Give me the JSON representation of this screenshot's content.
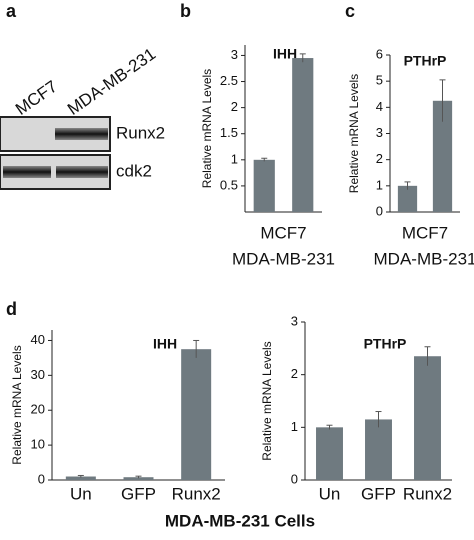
{
  "panels": [
    "a",
    "b",
    "c",
    "d"
  ],
  "blot": {
    "cell_lines": [
      "MCF7",
      "MDA-MB-231"
    ],
    "proteins": [
      "Runx2",
      "cdk2"
    ]
  },
  "shared_xlabel": "MDA-MB-231 Cells",
  "chart_data": [
    {
      "type": "bar",
      "title": "IHH",
      "ylabel": "Relative mRNA Levels",
      "categories": [
        "MCF7",
        "MDA-MB-231"
      ],
      "values": [
        1.0,
        2.95
      ],
      "errors": [
        0.03,
        0.08
      ],
      "color": "#6f7a80",
      "ylim": [
        0,
        3.2
      ],
      "yticks": [
        0.5,
        1,
        1.5,
        2,
        2.5,
        3
      ]
    },
    {
      "type": "bar",
      "title": "PTHrP",
      "ylabel": "Relative mRNA Levels",
      "categories": [
        "MCF7",
        "MDA-MB-231"
      ],
      "values": [
        1.0,
        4.25
      ],
      "errors": [
        0.15,
        0.8
      ],
      "color": "#6f7a80",
      "ylim": [
        0,
        6
      ],
      "yticks": [
        0,
        1,
        2,
        3,
        4,
        5,
        6
      ]
    },
    {
      "type": "bar",
      "title": "IHH",
      "ylabel": "Relative mRNA Levels",
      "categories": [
        "Un",
        "GFP",
        "Runx2"
      ],
      "values": [
        1,
        0.8,
        37.5
      ],
      "errors": [
        0.3,
        0.3,
        2.5
      ],
      "color": "#6f7a80",
      "ylim": [
        0,
        43
      ],
      "yticks": [
        0,
        10,
        20,
        30,
        40
      ]
    },
    {
      "type": "bar",
      "title": "PTHrP",
      "ylabel": "Relative mRNA Levels",
      "categories": [
        "Un",
        "GFP",
        "Runx2"
      ],
      "values": [
        1.0,
        1.15,
        2.35
      ],
      "errors": [
        0.04,
        0.15,
        0.18
      ],
      "color": "#6f7a80",
      "ylim": [
        0,
        3
      ],
      "yticks": [
        0,
        1,
        2,
        3
      ]
    }
  ]
}
